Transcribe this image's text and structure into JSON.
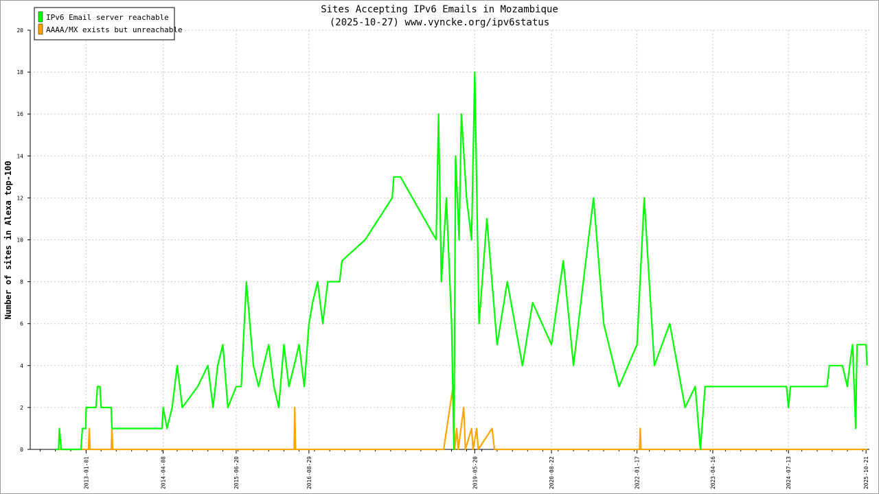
{
  "chart_data": {
    "type": "line",
    "title": "Sites Accepting IPv6 Emails in Mozambique",
    "subtitle": "(2025-10-27) www.vyncke.org/ipv6status",
    "ylabel": "Number of sites in Alexa top-100",
    "xlabel": "",
    "ylim": [
      0,
      20
    ],
    "yticks": [
      0,
      2,
      4,
      6,
      8,
      10,
      12,
      14,
      16,
      18,
      20
    ],
    "xlim": [
      "2012-02-01",
      "2025-11-10"
    ],
    "xticks": [
      "2013-01-01",
      "2014-04-08",
      "2015-06-20",
      "2016-08-29",
      "2019-05-20",
      "2020-08-22",
      "2022-01-17",
      "2023-04-16",
      "2024-07-13",
      "2025-10-21"
    ],
    "grid": true,
    "legend_position": "top-left",
    "series": [
      {
        "name": "IPv6 Email server reachable",
        "color": "#00ff00",
        "points": [
          [
            "2012-07-01",
            0
          ],
          [
            "2012-07-20",
            0
          ],
          [
            "2012-07-25",
            1
          ],
          [
            "2012-08-05",
            0
          ],
          [
            "2012-12-01",
            0
          ],
          [
            "2012-12-10",
            1
          ],
          [
            "2012-12-30",
            1
          ],
          [
            "2013-01-01",
            2
          ],
          [
            "2013-03-01",
            2
          ],
          [
            "2013-03-10",
            3
          ],
          [
            "2013-03-25",
            3
          ],
          [
            "2013-04-01",
            2
          ],
          [
            "2013-06-01",
            2
          ],
          [
            "2013-06-05",
            1
          ],
          [
            "2014-04-01",
            1
          ],
          [
            "2014-04-08",
            2
          ],
          [
            "2014-05-01",
            1
          ],
          [
            "2014-06-01",
            2
          ],
          [
            "2014-07-01",
            4
          ],
          [
            "2014-08-01",
            2
          ],
          [
            "2014-11-01",
            3
          ],
          [
            "2015-01-01",
            4
          ],
          [
            "2015-02-01",
            2
          ],
          [
            "2015-03-01",
            4
          ],
          [
            "2015-04-01",
            5
          ],
          [
            "2015-05-01",
            2
          ],
          [
            "2015-06-20",
            3
          ],
          [
            "2015-07-20",
            3
          ],
          [
            "2015-08-01",
            5
          ],
          [
            "2015-08-20",
            8
          ],
          [
            "2015-09-10",
            6
          ],
          [
            "2015-10-01",
            4
          ],
          [
            "2015-11-01",
            3
          ],
          [
            "2015-12-01",
            4
          ],
          [
            "2016-01-01",
            5
          ],
          [
            "2016-02-01",
            3
          ],
          [
            "2016-03-01",
            2
          ],
          [
            "2016-04-01",
            5
          ],
          [
            "2016-05-01",
            3
          ],
          [
            "2016-06-01",
            4
          ],
          [
            "2016-07-01",
            5
          ],
          [
            "2016-08-01",
            3
          ],
          [
            "2016-08-29",
            6
          ],
          [
            "2016-09-20",
            7
          ],
          [
            "2016-10-20",
            8
          ],
          [
            "2016-11-20",
            6
          ],
          [
            "2016-12-20",
            8
          ],
          [
            "2017-03-01",
            8
          ],
          [
            "2017-03-15",
            9
          ],
          [
            "2017-08-01",
            10
          ],
          [
            "2018-01-10",
            12
          ],
          [
            "2018-01-20",
            13
          ],
          [
            "2018-03-01",
            13
          ],
          [
            "2018-10-01",
            10
          ],
          [
            "2018-10-15",
            16
          ],
          [
            "2018-11-01",
            8
          ],
          [
            "2018-12-01",
            12
          ],
          [
            "2019-01-01",
            6
          ],
          [
            "2019-01-15",
            0
          ],
          [
            "2019-01-25",
            14
          ],
          [
            "2019-02-15",
            10
          ],
          [
            "2019-03-01",
            16
          ],
          [
            "2019-04-01",
            12
          ],
          [
            "2019-05-01",
            10
          ],
          [
            "2019-05-20",
            18
          ],
          [
            "2019-06-15",
            6
          ],
          [
            "2019-08-01",
            11
          ],
          [
            "2019-10-01",
            5
          ],
          [
            "2019-12-01",
            8
          ],
          [
            "2020-03-01",
            4
          ],
          [
            "2020-05-01",
            7
          ],
          [
            "2020-08-22",
            5
          ],
          [
            "2020-11-01",
            9
          ],
          [
            "2021-01-01",
            4
          ],
          [
            "2021-03-01",
            8
          ],
          [
            "2021-05-01",
            12
          ],
          [
            "2021-07-01",
            6
          ],
          [
            "2021-10-01",
            3
          ],
          [
            "2022-01-17",
            5
          ],
          [
            "2022-03-01",
            12
          ],
          [
            "2022-05-01",
            4
          ],
          [
            "2022-08-01",
            6
          ],
          [
            "2022-11-01",
            2
          ],
          [
            "2023-01-01",
            3
          ],
          [
            "2023-02-01",
            0
          ],
          [
            "2023-03-01",
            3
          ],
          [
            "2023-04-16",
            3
          ],
          [
            "2024-07-01",
            3
          ],
          [
            "2024-07-13",
            2
          ],
          [
            "2024-07-25",
            3
          ],
          [
            "2025-03-01",
            3
          ],
          [
            "2025-03-15",
            4
          ],
          [
            "2025-06-01",
            4
          ],
          [
            "2025-07-01",
            3
          ],
          [
            "2025-07-15",
            4
          ],
          [
            "2025-08-01",
            5
          ],
          [
            "2025-08-20",
            1
          ],
          [
            "2025-08-28",
            5
          ],
          [
            "2025-10-21",
            5
          ],
          [
            "2025-10-27",
            4
          ]
        ]
      },
      {
        "name": "AAAA/MX exists but unreachable",
        "color": "#ffa500",
        "points": [
          [
            "2012-07-01",
            0
          ],
          [
            "2013-01-15",
            0
          ],
          [
            "2013-01-20",
            1
          ],
          [
            "2013-01-25",
            0
          ],
          [
            "2013-06-01",
            0
          ],
          [
            "2013-06-05",
            1
          ],
          [
            "2013-06-10",
            0
          ],
          [
            "2016-06-01",
            0
          ],
          [
            "2016-06-05",
            2
          ],
          [
            "2016-06-10",
            0
          ],
          [
            "2018-11-15",
            0
          ],
          [
            "2019-01-10",
            3
          ],
          [
            "2019-01-20",
            0
          ],
          [
            "2019-02-01",
            1
          ],
          [
            "2019-02-10",
            0
          ],
          [
            "2019-03-15",
            2
          ],
          [
            "2019-03-25",
            0
          ],
          [
            "2019-05-01",
            1
          ],
          [
            "2019-05-10",
            0
          ],
          [
            "2019-06-01",
            1
          ],
          [
            "2019-06-10",
            0
          ],
          [
            "2019-09-01",
            1
          ],
          [
            "2019-09-15",
            0
          ],
          [
            "2022-02-01",
            0
          ],
          [
            "2022-02-05",
            1
          ],
          [
            "2022-02-10",
            0
          ],
          [
            "2025-10-27",
            0
          ]
        ]
      }
    ]
  }
}
